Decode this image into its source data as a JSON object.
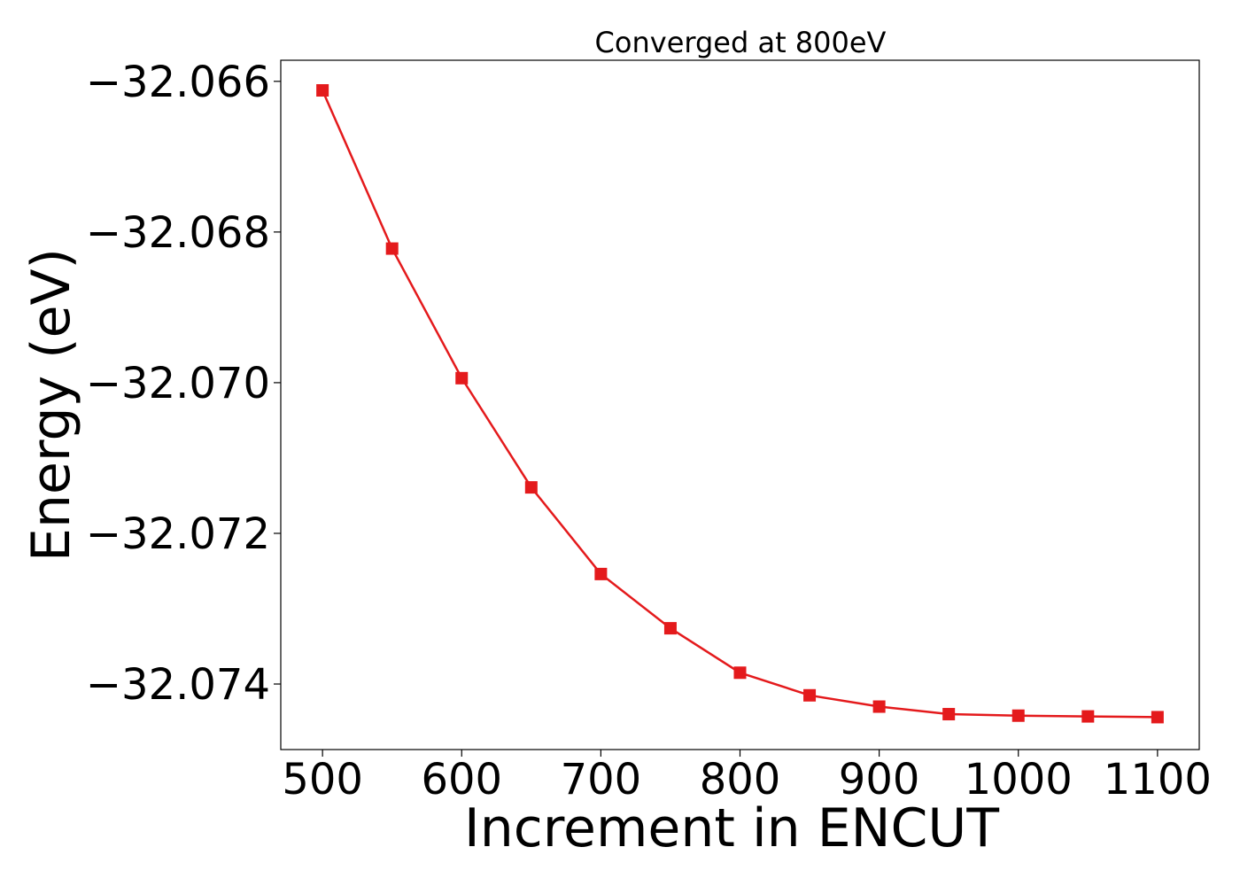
{
  "chart_data": {
    "type": "line",
    "title": "Converged at 800eV",
    "xlabel": "Increment in ENCUT",
    "ylabel": "Energy (eV)",
    "x": [
      500,
      550,
      600,
      650,
      700,
      750,
      800,
      850,
      900,
      950,
      1000,
      1050,
      1100
    ],
    "series": [
      {
        "values": [
          -32.06612,
          -32.06822,
          -32.06994,
          -32.07139,
          -32.07254,
          -32.07326,
          -32.07385,
          -32.07415,
          -32.0743,
          -32.0744,
          -32.07442,
          -32.07443,
          -32.07444
        ],
        "color": "#e41a1c",
        "marker": "square"
      }
    ],
    "xlim": [
      470,
      1130
    ],
    "ylim": [
      -32.07487,
      -32.06572
    ],
    "xticks": [
      500,
      600,
      700,
      800,
      900,
      1000,
      1100
    ],
    "xtick_labels": [
      "500",
      "600",
      "700",
      "800",
      "900",
      "1000",
      "1100"
    ],
    "yticks": [
      -32.066,
      -32.068,
      -32.07,
      -32.072,
      -32.074
    ],
    "ytick_labels": [
      "−32.066",
      "−32.068",
      "−32.070",
      "−32.072",
      "−32.074"
    ],
    "grid": false,
    "legend": false
  }
}
